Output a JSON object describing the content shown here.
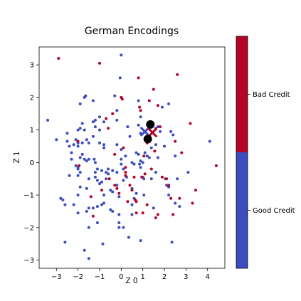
{
  "chart_data": {
    "type": "scatter",
    "title": "German Encodings",
    "xlabel": "Z 0",
    "ylabel": "Z 1",
    "xlim": [
      -3.8,
      4.8
    ],
    "ylim": [
      -3.25,
      3.55
    ],
    "xticks": [
      {
        "v": -3,
        "label": "−3"
      },
      {
        "v": -2,
        "label": "−2"
      },
      {
        "v": -1,
        "label": "−1"
      },
      {
        "v": 0,
        "label": "0"
      },
      {
        "v": 1,
        "label": "1"
      },
      {
        "v": 2,
        "label": "2"
      },
      {
        "v": 3,
        "label": "3"
      },
      {
        "v": 4,
        "label": "4"
      }
    ],
    "yticks": [
      {
        "v": -3,
        "label": "−3"
      },
      {
        "v": -2,
        "label": "−2"
      },
      {
        "v": -1,
        "label": "−1"
      },
      {
        "v": 0,
        "label": "0"
      },
      {
        "v": 1,
        "label": "1"
      },
      {
        "v": 2,
        "label": "2"
      },
      {
        "v": 3,
        "label": "3"
      }
    ],
    "grid": false,
    "colorbar": {
      "categories": [
        {
          "label": "Bad Credit",
          "color": "#b40426"
        },
        {
          "label": "Good Credit",
          "color": "#3b4cc0"
        }
      ]
    },
    "series": [
      {
        "color": "#3b4cc0",
        "points": [
          [
            -3.4,
            1.3
          ],
          [
            -3.0,
            0.7
          ],
          [
            -2.8,
            -1.1
          ],
          [
            -2.7,
            -1.15
          ],
          [
            -2.6,
            -1.3
          ],
          [
            -2.6,
            -2.45
          ],
          [
            -2.5,
            0.65
          ],
          [
            -2.5,
            0.9
          ],
          [
            -2.4,
            0.5
          ],
          [
            -2.3,
            0.3
          ],
          [
            -2.4,
            -0.4
          ],
          [
            -2.2,
            -1.3
          ],
          [
            -2.2,
            0.55
          ],
          [
            -2.1,
            0.7
          ],
          [
            -2.0,
            1.0
          ],
          [
            -2.0,
            0.6
          ],
          [
            -2.0,
            0.5
          ],
          [
            -2.1,
            -0.1
          ],
          [
            -2.0,
            -0.15
          ],
          [
            -2.0,
            -0.2
          ],
          [
            -1.9,
            -0.3
          ],
          [
            -2.0,
            -0.4
          ],
          [
            -1.9,
            0.15
          ],
          [
            -1.9,
            -0.75
          ],
          [
            -2.0,
            -1.0
          ],
          [
            -1.8,
            0.25
          ],
          [
            -2.0,
            -1.55
          ],
          [
            -1.9,
            1.8
          ],
          [
            -1.8,
            1.2
          ],
          [
            -1.9,
            1.05
          ],
          [
            -1.7,
            1.0
          ],
          [
            -1.7,
            2.0
          ],
          [
            -1.65,
            2.05
          ],
          [
            -1.8,
            0.6
          ],
          [
            -1.7,
            0.1
          ],
          [
            -1.6,
            0.05
          ],
          [
            -1.5,
            0.1
          ],
          [
            -1.6,
            0.7
          ],
          [
            -1.5,
            0.6
          ],
          [
            -1.5,
            -0.5
          ],
          [
            -1.6,
            -1.5
          ],
          [
            -1.6,
            -0.8
          ],
          [
            -1.5,
            -1.4
          ],
          [
            -1.5,
            -2.0
          ],
          [
            -1.7,
            -2.7
          ],
          [
            -1.5,
            -2.95
          ],
          [
            -1.3,
            1.9
          ],
          [
            -1.3,
            1.25
          ],
          [
            -1.2,
            1.1
          ],
          [
            -1.2,
            1.3
          ],
          [
            -1.3,
            0.8
          ],
          [
            -1.25,
            0.1
          ],
          [
            -1.2,
            0.0
          ],
          [
            -1.1,
            -0.2
          ],
          [
            -1.2,
            -0.3
          ],
          [
            -1.2,
            -0.45
          ],
          [
            -1.1,
            -0.55
          ],
          [
            -1.3,
            -1.4
          ],
          [
            -1.1,
            -1.35
          ],
          [
            -1.1,
            -1.85
          ],
          [
            -1.0,
            1.4
          ],
          [
            -1.0,
            1.0
          ],
          [
            -1.0,
            0.6
          ],
          [
            -0.9,
            -0.25
          ],
          [
            -0.9,
            -0.6
          ],
          [
            -0.9,
            -1.3
          ],
          [
            -0.8,
            1.25
          ],
          [
            -0.8,
            0.55
          ],
          [
            -0.8,
            0.45
          ],
          [
            -0.7,
            -0.3
          ],
          [
            -0.8,
            -1.0
          ],
          [
            -0.8,
            -1.25
          ],
          [
            -0.85,
            -2.5
          ],
          [
            -0.7,
            -0.5
          ],
          [
            -0.6,
            -0.2
          ],
          [
            -0.6,
            -0.35
          ],
          [
            -0.5,
            -0.85
          ],
          [
            -0.4,
            -0.9
          ],
          [
            -0.5,
            -1.45
          ],
          [
            -0.4,
            -1.5
          ],
          [
            -0.3,
            2.05
          ],
          [
            -0.2,
            1.6
          ],
          [
            -0.2,
            1.3
          ],
          [
            -0.2,
            0.55
          ],
          [
            -0.2,
            -0.3
          ],
          [
            -0.2,
            -0.7
          ],
          [
            -0.1,
            -1.05
          ],
          [
            -0.1,
            -1.6
          ],
          [
            -0.1,
            -1.85
          ],
          [
            -0.1,
            -2.0
          ],
          [
            0.0,
            3.3
          ],
          [
            -0.05,
            2.6
          ],
          [
            0.0,
            0.4
          ],
          [
            0.0,
            0.1
          ],
          [
            0.0,
            -0.05
          ],
          [
            0.1,
            -0.2
          ],
          [
            0.1,
            -0.55
          ],
          [
            0.1,
            -2.0
          ],
          [
            0.2,
            0.2
          ],
          [
            0.3,
            1.1
          ],
          [
            0.35,
            -2.3
          ],
          [
            0.4,
            0.8
          ],
          [
            0.5,
            0.0
          ],
          [
            0.5,
            -0.8
          ],
          [
            0.5,
            -1.3
          ],
          [
            0.5,
            -1.6
          ],
          [
            0.6,
            -0.05
          ],
          [
            0.7,
            0.3
          ],
          [
            0.7,
            -0.95
          ],
          [
            0.8,
            1.9
          ],
          [
            0.8,
            1.15
          ],
          [
            0.8,
            0.25
          ],
          [
            0.85,
            -0.05
          ],
          [
            0.9,
            1.4
          ],
          [
            0.9,
            0.9
          ],
          [
            0.9,
            0.05
          ],
          [
            0.9,
            -0.15
          ],
          [
            1.0,
            -0.45
          ],
          [
            0.9,
            -2.4
          ],
          [
            1.0,
            0.0
          ],
          [
            1.05,
            -0.5
          ],
          [
            1.05,
            -1.0
          ],
          [
            1.1,
            0.3
          ],
          [
            1.2,
            0.2
          ],
          [
            1.3,
            0.15
          ],
          [
            1.4,
            1.1
          ],
          [
            1.4,
            0.45
          ],
          [
            1.4,
            -0.5
          ],
          [
            1.5,
            -1.4
          ],
          [
            1.6,
            1.05
          ],
          [
            1.6,
            -0.3
          ],
          [
            1.7,
            1.1
          ],
          [
            1.7,
            0.15
          ],
          [
            1.8,
            0.95
          ],
          [
            1.9,
            1.7
          ],
          [
            2.0,
            0.5
          ],
          [
            2.05,
            -0.5
          ],
          [
            2.1,
            -0.7
          ],
          [
            2.2,
            1.8
          ],
          [
            2.2,
            -0.75
          ],
          [
            2.3,
            0.95
          ],
          [
            2.35,
            -2.45
          ],
          [
            2.4,
            0.85
          ],
          [
            2.5,
            0.2
          ],
          [
            2.5,
            -1.25
          ],
          [
            2.6,
            -0.5
          ],
          [
            2.7,
            -1.35
          ],
          [
            3.1,
            -0.3
          ],
          [
            4.1,
            0.65
          ],
          [
            2.2,
            -1.0
          ],
          [
            -0.4,
            -0.25
          ],
          [
            0.25,
            -0.45
          ],
          [
            -1.0,
            -0.65
          ],
          [
            1.6,
            0.55
          ],
          [
            0.6,
            -1.1
          ],
          [
            -2.3,
            0.1
          ]
        ]
      },
      {
        "color": "#b40426",
        "points": [
          [
            -2.9,
            3.2
          ],
          [
            -2.0,
            0.65
          ],
          [
            -1.95,
            -0.1
          ],
          [
            -1.4,
            -1.05
          ],
          [
            -1.3,
            -1.65
          ],
          [
            -1.0,
            3.05
          ],
          [
            -0.7,
            1.35
          ],
          [
            -0.6,
            1.05
          ],
          [
            -0.55,
            -0.5
          ],
          [
            -0.4,
            1.5
          ],
          [
            -0.3,
            -0.7
          ],
          [
            -0.2,
            -0.8
          ],
          [
            -0.1,
            -0.95
          ],
          [
            0.0,
            2.0
          ],
          [
            0.05,
            1.95
          ],
          [
            0.1,
            0.45
          ],
          [
            0.2,
            -0.15
          ],
          [
            0.2,
            -0.4
          ],
          [
            0.3,
            -1.2
          ],
          [
            0.4,
            -0.7
          ],
          [
            0.5,
            -0.85
          ],
          [
            0.6,
            -0.45
          ],
          [
            0.65,
            -1.15
          ],
          [
            0.7,
            -1.2
          ],
          [
            0.7,
            -1.55
          ],
          [
            0.8,
            2.6
          ],
          [
            0.85,
            1.7
          ],
          [
            0.9,
            1.6
          ],
          [
            0.95,
            -0.45
          ],
          [
            1.0,
            -1.55
          ],
          [
            1.1,
            -0.35
          ],
          [
            1.2,
            0.6
          ],
          [
            1.2,
            -1.3
          ],
          [
            1.3,
            1.9
          ],
          [
            1.5,
            2.25
          ],
          [
            1.6,
            -1.7
          ],
          [
            1.7,
            -1.6
          ],
          [
            1.7,
            1.75
          ],
          [
            1.8,
            1.1
          ],
          [
            1.9,
            -0.45
          ],
          [
            2.1,
            -0.5
          ],
          [
            2.2,
            -0.7
          ],
          [
            2.3,
            -1.1
          ],
          [
            2.4,
            -1.6
          ],
          [
            2.5,
            0.65
          ],
          [
            2.6,
            2.7
          ],
          [
            2.7,
            -1.1
          ],
          [
            2.8,
            0.3
          ],
          [
            3.2,
            1.2
          ],
          [
            3.3,
            -1.25
          ],
          [
            3.45,
            -0.85
          ],
          [
            4.4,
            -0.1
          ],
          [
            1.4,
            -0.2
          ],
          [
            -0.3,
            0.25
          ],
          [
            1.05,
            0.2
          ],
          [
            0.2,
            -0.3
          ],
          [
            1.55,
            0.35
          ],
          [
            -0.9,
            -0.85
          ]
        ]
      }
    ],
    "markers": [
      {
        "type": "x",
        "x": 1.1,
        "y": 0.95,
        "color": "#3b4cc0"
      },
      {
        "type": "x",
        "x": 1.45,
        "y": 0.92,
        "color": "#b40426"
      },
      {
        "type": "dot",
        "x": 1.35,
        "y": 1.17,
        "color": "#000000"
      },
      {
        "type": "dot",
        "x": 1.23,
        "y": 0.72,
        "color": "#000000"
      }
    ]
  }
}
